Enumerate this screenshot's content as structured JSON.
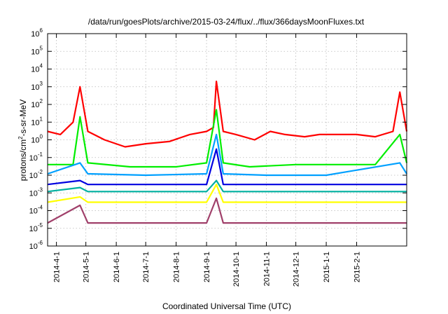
{
  "chart_data": {
    "type": "line",
    "title": "/data/run/goesPlots/archive/2015-03-24/flux/../flux/366daysMoonFluxes.txt",
    "xlabel": "Coordinated Universal Time (UTC)",
    "ylabel": "protons/cm2-s-sr-MeV",
    "y_scale": "log",
    "ylim": [
      1e-06,
      1000000
    ],
    "xlim": [
      "2014-03-23",
      "2015-03-24"
    ],
    "grid": true,
    "legend": "none",
    "x_ticks": [
      "2014-4-1",
      "2014-5-1",
      "2014-6-1",
      "2014-7-1",
      "2014-8-1",
      "2014-9-1",
      "2014-10-1",
      "2014-11-1",
      "2014-12-1",
      "2015-1-1",
      "2015-2-1"
    ],
    "y_ticks": [
      {
        "base": "10",
        "exp": "-6"
      },
      {
        "base": "10",
        "exp": "-5"
      },
      {
        "base": "10",
        "exp": "-4"
      },
      {
        "base": "10",
        "exp": "-3"
      },
      {
        "base": "10",
        "exp": "-2"
      },
      {
        "base": "10",
        "exp": "-1"
      },
      {
        "base": "10",
        "exp": "0"
      },
      {
        "base": "10",
        "exp": "1"
      },
      {
        "base": "10",
        "exp": "2"
      },
      {
        "base": "10",
        "exp": "3"
      },
      {
        "base": "10",
        "exp": "4"
      },
      {
        "base": "10",
        "exp": "5"
      },
      {
        "base": "10",
        "exp": "6"
      }
    ],
    "series": [
      {
        "color": "#ff0000",
        "x": [
          "2014-03-23",
          "2014-04-05",
          "2014-04-18",
          "2014-04-25",
          "2014-05-03",
          "2014-05-20",
          "2014-06-10",
          "2014-07-01",
          "2014-07-25",
          "2014-08-15",
          "2014-09-01",
          "2014-09-08",
          "2014-09-11",
          "2014-09-18",
          "2014-10-01",
          "2014-10-20",
          "2014-11-05",
          "2014-11-20",
          "2014-12-10",
          "2014-12-25",
          "2015-01-10",
          "2015-02-01",
          "2015-02-20",
          "2015-03-10",
          "2015-03-17",
          "2015-03-24"
        ],
        "y": [
          3,
          2,
          10,
          1000,
          3,
          1,
          0.4,
          0.6,
          0.8,
          2,
          3,
          5,
          2000,
          3,
          2,
          1,
          3,
          2,
          1.5,
          2,
          2,
          2,
          1.5,
          3,
          500,
          3
        ]
      },
      {
        "color": "#00ee00",
        "x": [
          "2014-03-23",
          "2014-04-18",
          "2014-04-25",
          "2014-05-03",
          "2014-06-15",
          "2014-08-01",
          "2014-09-01",
          "2014-09-11",
          "2014-09-18",
          "2014-10-15",
          "2014-12-01",
          "2015-01-15",
          "2015-02-20",
          "2015-03-17",
          "2015-03-24"
        ],
        "y": [
          0.04,
          0.04,
          20,
          0.05,
          0.03,
          0.03,
          0.05,
          50,
          0.05,
          0.03,
          0.04,
          0.04,
          0.04,
          2,
          0.05
        ]
      },
      {
        "color": "#00a0ff",
        "x": [
          "2014-03-23",
          "2014-04-25",
          "2014-05-03",
          "2014-07-01",
          "2014-09-01",
          "2014-09-11",
          "2014-09-18",
          "2014-11-01",
          "2015-01-01",
          "2015-03-17",
          "2015-03-24"
        ],
        "y": [
          0.012,
          0.05,
          0.012,
          0.01,
          0.012,
          2,
          0.012,
          0.01,
          0.01,
          0.05,
          0.012
        ]
      },
      {
        "color": "#0000e0",
        "x": [
          "2014-03-23",
          "2014-04-25",
          "2014-05-03",
          "2014-07-01",
          "2014-09-01",
          "2014-09-11",
          "2014-09-18",
          "2014-11-01",
          "2015-01-01",
          "2015-03-24"
        ],
        "y": [
          0.003,
          0.005,
          0.003,
          0.003,
          0.003,
          0.3,
          0.003,
          0.003,
          0.003,
          0.003
        ]
      },
      {
        "color": "#00b0a0",
        "x": [
          "2014-03-23",
          "2014-04-25",
          "2014-05-03",
          "2014-08-01",
          "2014-09-01",
          "2014-09-11",
          "2014-09-18",
          "2014-12-01",
          "2015-03-24"
        ],
        "y": [
          0.0012,
          0.002,
          0.0012,
          0.0012,
          0.0012,
          0.005,
          0.0012,
          0.0012,
          0.0012
        ]
      },
      {
        "color": "#ffff00",
        "x": [
          "2014-03-23",
          "2014-04-25",
          "2014-05-03",
          "2014-08-01",
          "2014-09-01",
          "2014-09-11",
          "2014-09-18",
          "2014-12-01",
          "2015-03-24"
        ],
        "y": [
          0.0003,
          0.0006,
          0.0003,
          0.0003,
          0.0003,
          0.003,
          0.0003,
          0.0003,
          0.0003
        ]
      },
      {
        "color": "#a0406a",
        "x": [
          "2014-03-23",
          "2014-04-25",
          "2014-05-03",
          "2014-08-01",
          "2014-09-01",
          "2014-09-11",
          "2014-09-18",
          "2014-12-01",
          "2015-03-24"
        ],
        "y": [
          2e-05,
          0.0002,
          2e-05,
          2e-05,
          2e-05,
          0.0005,
          2e-05,
          2e-05,
          2e-05
        ]
      }
    ]
  }
}
